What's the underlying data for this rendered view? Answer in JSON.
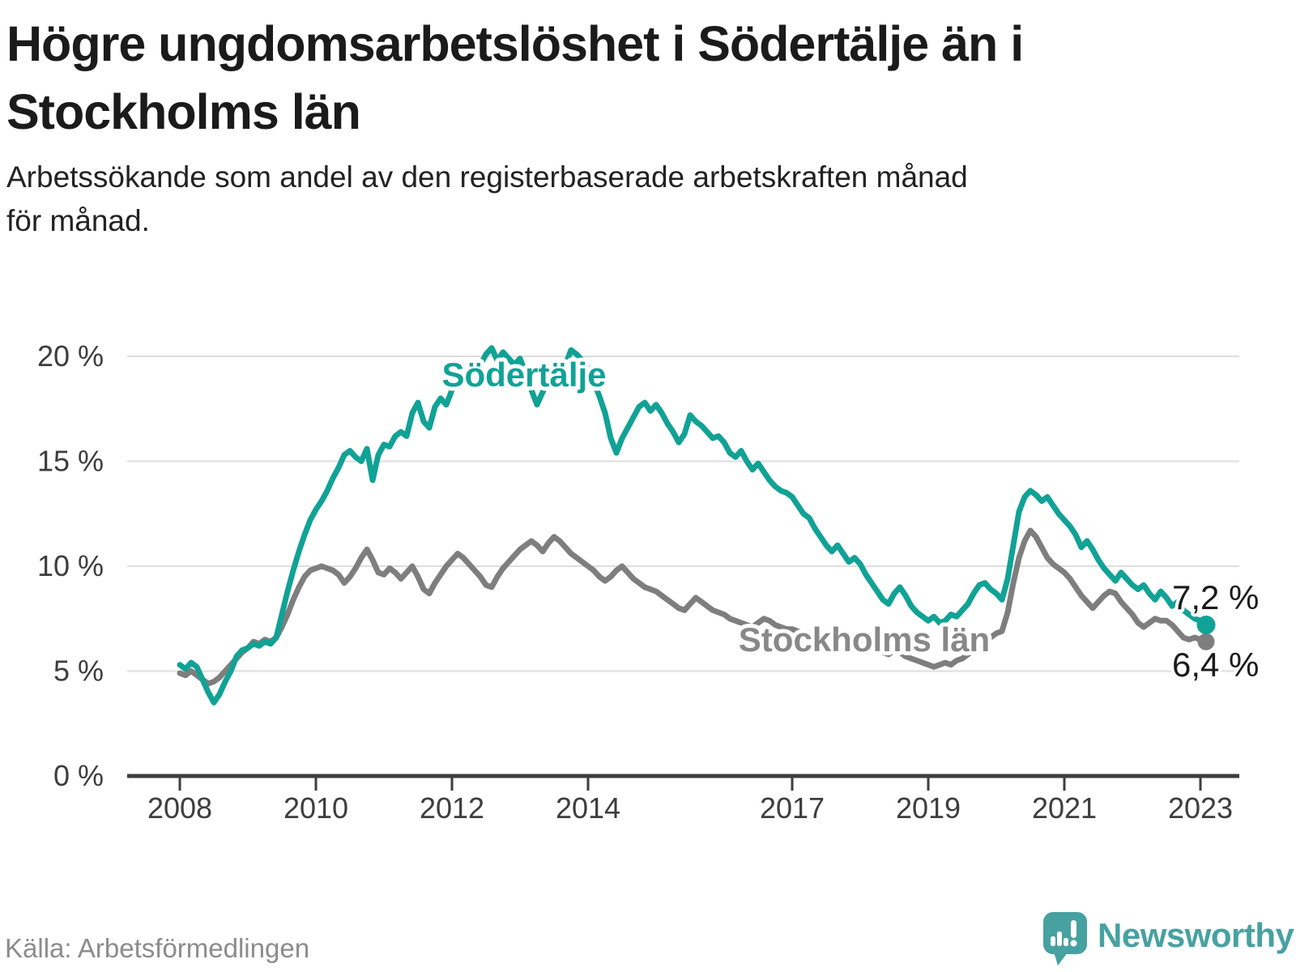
{
  "header": {
    "title_line1": "Högre ungdomsarbetslöshet i Södertälje än i",
    "title_line2": "Stockholms län",
    "subtitle_line1": "Arbetssökande som andel av den registerbaserade arbetskraften månad",
    "subtitle_line2": "för månad."
  },
  "footer": {
    "source": "Källa: Arbetsförmedlingen",
    "brand_name": "Newsworthy"
  },
  "colors": {
    "sodertalje": "#11a296",
    "stockholm": "#7e7e7e",
    "axis": "#3d3d3d",
    "grid": "#dedede",
    "text": "#1b1b1b",
    "muted": "#8c8c8c",
    "brand": "#47a1a1"
  },
  "chart_data": {
    "type": "line",
    "unit": "%",
    "frequency": "monthly",
    "start": "2008-01",
    "end": "2023-02",
    "grid": "horizontal",
    "ylim": [
      0,
      21
    ],
    "y_ticks": [
      {
        "value": 0,
        "label": "0 %"
      },
      {
        "value": 5,
        "label": "5 %"
      },
      {
        "value": 10,
        "label": "10 %"
      },
      {
        "value": 15,
        "label": "15 %"
      },
      {
        "value": 20,
        "label": "20 %"
      }
    ],
    "x_ticks": [
      {
        "year": 2008,
        "label": "2008"
      },
      {
        "year": 2010,
        "label": "2010"
      },
      {
        "year": 2012,
        "label": "2012"
      },
      {
        "year": 2014,
        "label": "2014"
      },
      {
        "year": 2017,
        "label": "2017"
      },
      {
        "year": 2019,
        "label": "2019"
      },
      {
        "year": 2021,
        "label": "2021"
      },
      {
        "year": 2023,
        "label": "2023"
      }
    ],
    "series": [
      {
        "name": "Stockholms län",
        "color": "#7e7e7e",
        "end_label": "6,4 %",
        "end_value": 6.4,
        "values": [
          4.9,
          4.8,
          5.0,
          4.8,
          4.6,
          4.4,
          4.5,
          4.7,
          5.0,
          5.3,
          5.6,
          5.9,
          6.1,
          6.4,
          6.3,
          6.5,
          6.4,
          6.6,
          7.1,
          7.7,
          8.4,
          9.0,
          9.5,
          9.8,
          9.9,
          10.0,
          9.9,
          9.8,
          9.6,
          9.2,
          9.5,
          9.9,
          10.4,
          10.8,
          10.3,
          9.7,
          9.6,
          9.9,
          9.7,
          9.4,
          9.7,
          10.0,
          9.5,
          8.9,
          8.7,
          9.2,
          9.6,
          10.0,
          10.3,
          10.6,
          10.4,
          10.1,
          9.8,
          9.5,
          9.1,
          9.0,
          9.5,
          9.9,
          10.2,
          10.5,
          10.8,
          11.0,
          11.2,
          11.0,
          10.7,
          11.1,
          11.4,
          11.2,
          10.9,
          10.6,
          10.4,
          10.2,
          10.0,
          9.8,
          9.5,
          9.3,
          9.5,
          9.8,
          10.0,
          9.7,
          9.4,
          9.2,
          9.0,
          8.9,
          8.8,
          8.6,
          8.4,
          8.2,
          8.0,
          7.9,
          8.2,
          8.5,
          8.3,
          8.1,
          7.9,
          7.8,
          7.7,
          7.5,
          7.4,
          7.3,
          7.2,
          7.1,
          7.3,
          7.5,
          7.4,
          7.2,
          7.1,
          7.0,
          7.0,
          6.9,
          6.8,
          6.8,
          6.7,
          6.6,
          6.7,
          6.8,
          6.7,
          6.5,
          6.4,
          6.3,
          6.3,
          6.2,
          6.1,
          6.0,
          5.9,
          5.8,
          6.0,
          5.9,
          5.7,
          5.6,
          5.5,
          5.4,
          5.3,
          5.2,
          5.3,
          5.4,
          5.3,
          5.5,
          5.6,
          5.8,
          6.0,
          6.2,
          6.4,
          6.6,
          6.8,
          6.9,
          7.8,
          9.2,
          10.4,
          11.2,
          11.7,
          11.4,
          10.9,
          10.4,
          10.1,
          9.9,
          9.7,
          9.4,
          9.0,
          8.6,
          8.3,
          8.0,
          8.3,
          8.6,
          8.8,
          8.7,
          8.3,
          8.0,
          7.7,
          7.3,
          7.1,
          7.3,
          7.5,
          7.4,
          7.4,
          7.2,
          6.9,
          6.6,
          6.5,
          6.6,
          6.5,
          6.4
        ]
      },
      {
        "name": "Södertälje",
        "color": "#11a296",
        "end_label": "7,2 %",
        "end_value": 7.2,
        "values": [
          5.3,
          5.1,
          5.4,
          5.2,
          4.6,
          4.0,
          3.5,
          3.9,
          4.5,
          5.0,
          5.7,
          6.0,
          6.1,
          6.3,
          6.2,
          6.4,
          6.3,
          6.6,
          7.7,
          8.8,
          9.8,
          10.7,
          11.5,
          12.2,
          12.7,
          13.1,
          13.6,
          14.2,
          14.7,
          15.3,
          15.5,
          15.2,
          15.0,
          15.6,
          14.1,
          15.3,
          15.8,
          15.7,
          16.2,
          16.4,
          16.2,
          17.3,
          17.8,
          16.9,
          16.6,
          17.6,
          18.0,
          17.7,
          18.4,
          18.8,
          19.2,
          18.6,
          19.0,
          19.6,
          20.1,
          20.4,
          19.8,
          20.2,
          19.9,
          19.6,
          19.9,
          19.2,
          18.4,
          17.7,
          18.3,
          18.8,
          19.4,
          19.0,
          19.6,
          20.3,
          20.1,
          19.8,
          19.4,
          18.8,
          18.1,
          17.3,
          16.1,
          15.4,
          16.1,
          16.6,
          17.1,
          17.6,
          17.8,
          17.4,
          17.7,
          17.3,
          16.8,
          16.4,
          15.9,
          16.3,
          17.2,
          16.9,
          16.7,
          16.4,
          16.1,
          16.2,
          15.9,
          15.4,
          15.2,
          15.5,
          15.0,
          14.6,
          14.9,
          14.5,
          14.1,
          13.8,
          13.6,
          13.5,
          13.3,
          12.9,
          12.5,
          12.3,
          11.8,
          11.4,
          11.0,
          10.7,
          11.0,
          10.6,
          10.2,
          10.4,
          10.1,
          9.6,
          9.2,
          8.8,
          8.4,
          8.2,
          8.7,
          9.0,
          8.6,
          8.1,
          7.8,
          7.6,
          7.4,
          7.6,
          7.3,
          7.4,
          7.7,
          7.6,
          7.9,
          8.2,
          8.7,
          9.1,
          9.2,
          8.9,
          8.7,
          8.4,
          9.4,
          11.0,
          12.6,
          13.3,
          13.6,
          13.4,
          13.1,
          13.3,
          12.9,
          12.5,
          12.2,
          11.9,
          11.5,
          10.9,
          11.2,
          10.8,
          10.3,
          9.9,
          9.6,
          9.3,
          9.7,
          9.4,
          9.1,
          8.9,
          9.1,
          8.7,
          8.4,
          8.8,
          8.5,
          8.1,
          8.3,
          7.9,
          7.7,
          7.5,
          7.4,
          7.2
        ]
      }
    ]
  }
}
